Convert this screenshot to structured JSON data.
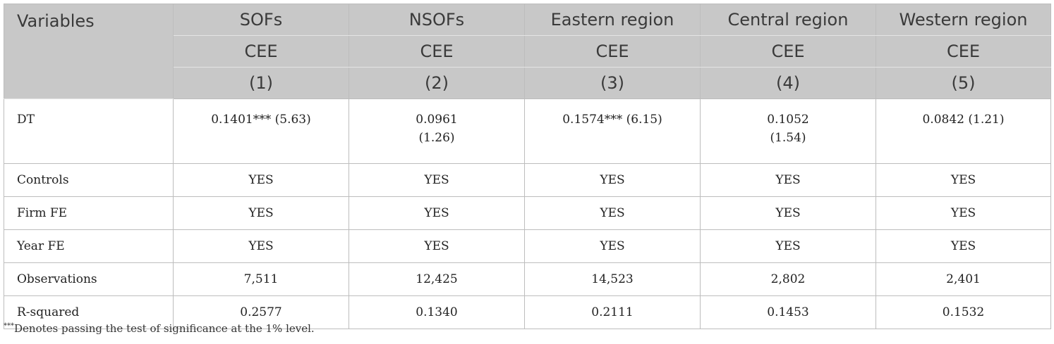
{
  "header": {
    "variables_label": "Variables",
    "columns": [
      {
        "name": "SOFs",
        "dep": "CEE",
        "num": "(1)"
      },
      {
        "name": "NSOFs",
        "dep": "CEE",
        "num": "(2)"
      },
      {
        "name": "Eastern region",
        "dep": "CEE",
        "num": "(3)"
      },
      {
        "name": "Central region",
        "dep": "CEE",
        "num": "(4)"
      },
      {
        "name": "Western region",
        "dep": "CEE",
        "num": "(5)"
      }
    ]
  },
  "rows": [
    {
      "label": "DT",
      "cells": [
        {
          "l1": "0.1401*** (5.63)",
          "l2": ""
        },
        {
          "l1": "0.0961",
          "l2": "(1.26)"
        },
        {
          "l1": "0.1574*** (6.15)",
          "l2": ""
        },
        {
          "l1": "0.1052",
          "l2": "(1.54)"
        },
        {
          "l1": "0.0842 (1.21)",
          "l2": ""
        }
      ]
    },
    {
      "label": "Controls",
      "cells": [
        "YES",
        "YES",
        "YES",
        "YES",
        "YES"
      ]
    },
    {
      "label": "Firm FE",
      "cells": [
        "YES",
        "YES",
        "YES",
        "YES",
        "YES"
      ]
    },
    {
      "label": "Year FE",
      "cells": [
        "YES",
        "YES",
        "YES",
        "YES",
        "YES"
      ]
    },
    {
      "label": "Observations",
      "cells": [
        "7,511",
        "12,425",
        "14,523",
        "2,802",
        "2,401"
      ]
    },
    {
      "label": "R-squared",
      "cells": [
        "0.2577",
        "0.1340",
        "0.2111",
        "0.1453",
        "0.1532"
      ]
    }
  ],
  "footnote": {
    "marker": "***",
    "text": "Denotes passing the test of significance at the 1% level."
  }
}
